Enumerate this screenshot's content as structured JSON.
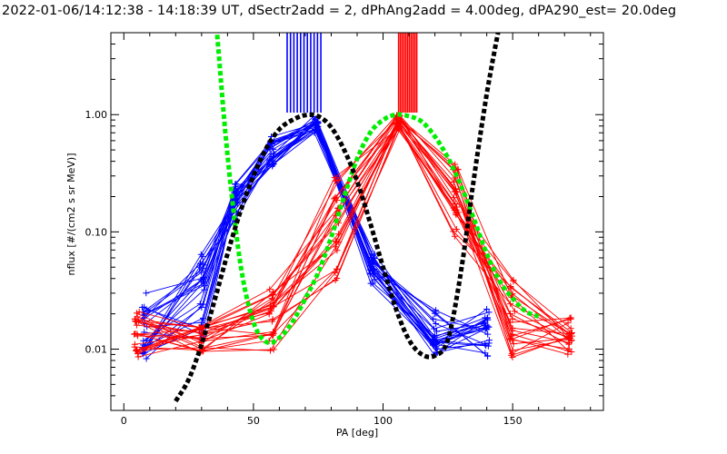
{
  "chart_data": {
    "type": "line",
    "title": "2022-01-06/14:12:38 - 14:18:39 UT, dSectr2add = 2, dPhAng2add = 4.00deg, dPA290_est=  20.0deg",
    "xlabel": "PA [deg]",
    "ylabel": "nflux [#/(cm2 s sr MeV)]",
    "xlim": [
      -5,
      185
    ],
    "ylim": [
      0.003,
      5.0
    ],
    "yscale": "log",
    "x_ticks": [
      0,
      50,
      100,
      150
    ],
    "x_tick_labels": [
      "0",
      "50",
      "100",
      "150"
    ],
    "y_ticks": [
      0.01,
      0.1,
      1.0
    ],
    "y_tick_labels": [
      "0.01",
      "0.10",
      "1.00"
    ],
    "grid": false,
    "colors": {
      "blue": "#0000ff",
      "red": "#ff0000",
      "green": "#00ee00",
      "black": "#000000"
    },
    "series": [
      {
        "color": "#0000ff",
        "marker": "plus",
        "x": [
          8,
          30,
          43,
          57,
          74,
          96,
          120,
          140
        ],
        "envelope_low": [
          0.008,
          0.012,
          0.12,
          0.36,
          0.68,
          0.036,
          0.0085,
          0.0085
        ],
        "envelope_high": [
          0.031,
          0.065,
          0.26,
          0.68,
          0.97,
          0.068,
          0.022,
          0.022
        ],
        "peak_markers_x": [
          63,
          76
        ]
      },
      {
        "color": "#ff0000",
        "marker": "plus",
        "x": [
          5,
          30,
          57,
          82,
          106,
          128,
          150,
          172
        ],
        "envelope_low": [
          0.008,
          0.009,
          0.0095,
          0.038,
          0.76,
          0.09,
          0.0085,
          0.0085
        ],
        "envelope_high": [
          0.021,
          0.016,
          0.034,
          0.33,
          1.0,
          0.4,
          0.04,
          0.019
        ],
        "peak_markers_x": [
          106,
          113
        ]
      },
      {
        "color": "#00ee00",
        "style": "dashed-thick",
        "x": [
          36,
          40,
          45,
          50,
          55,
          60,
          65,
          70,
          75,
          80,
          85,
          90,
          95,
          100,
          105,
          110,
          115,
          120,
          125,
          130,
          135,
          140,
          145,
          150,
          155,
          160
        ],
        "values": [
          4.8,
          0.45,
          0.053,
          0.017,
          0.0115,
          0.0125,
          0.017,
          0.027,
          0.045,
          0.09,
          0.2,
          0.42,
          0.7,
          0.9,
          1.0,
          0.97,
          0.87,
          0.65,
          0.43,
          0.25,
          0.13,
          0.065,
          0.038,
          0.027,
          0.021,
          0.019
        ]
      },
      {
        "color": "#000000",
        "style": "dashed-thick",
        "x": [
          20,
          25,
          30,
          35,
          40,
          45,
          50,
          55,
          60,
          65,
          70,
          75,
          80,
          85,
          90,
          95,
          100,
          105,
          110,
          115,
          120,
          125,
          130,
          135,
          140,
          145
        ],
        "values": [
          0.0036,
          0.0055,
          0.011,
          0.026,
          0.065,
          0.15,
          0.3,
          0.52,
          0.75,
          0.9,
          0.99,
          0.97,
          0.78,
          0.5,
          0.27,
          0.12,
          0.05,
          0.022,
          0.012,
          0.009,
          0.0088,
          0.012,
          0.045,
          0.28,
          1.5,
          6.0
        ]
      }
    ]
  }
}
